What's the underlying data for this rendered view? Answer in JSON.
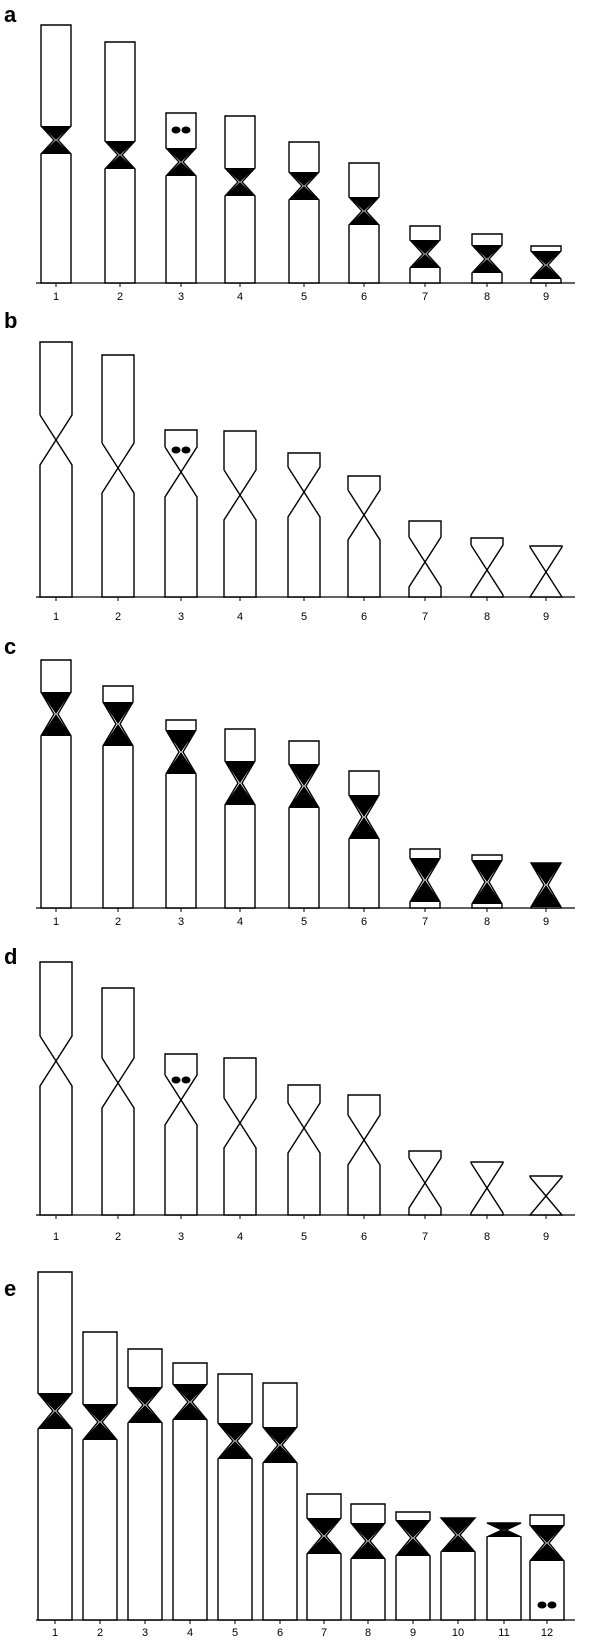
{
  "panels": [
    {
      "label": "a",
      "numbers": [
        "1",
        "2",
        "3",
        "4",
        "5",
        "6",
        "7",
        "8",
        "9"
      ]
    },
    {
      "label": "b",
      "numbers": [
        "1",
        "2",
        "3",
        "4",
        "5",
        "6",
        "7",
        "8",
        "9"
      ]
    },
    {
      "label": "c",
      "numbers": [
        "1",
        "2",
        "3",
        "4",
        "5",
        "6",
        "7",
        "8",
        "9"
      ]
    },
    {
      "label": "d",
      "numbers": [
        "1",
        "2",
        "3",
        "4",
        "5",
        "6",
        "7",
        "8",
        "9"
      ]
    },
    {
      "label": "e",
      "numbers": [
        "1",
        "2",
        "3",
        "4",
        "5",
        "6",
        "7",
        "8",
        "9",
        "10",
        "11",
        "12"
      ]
    }
  ]
}
